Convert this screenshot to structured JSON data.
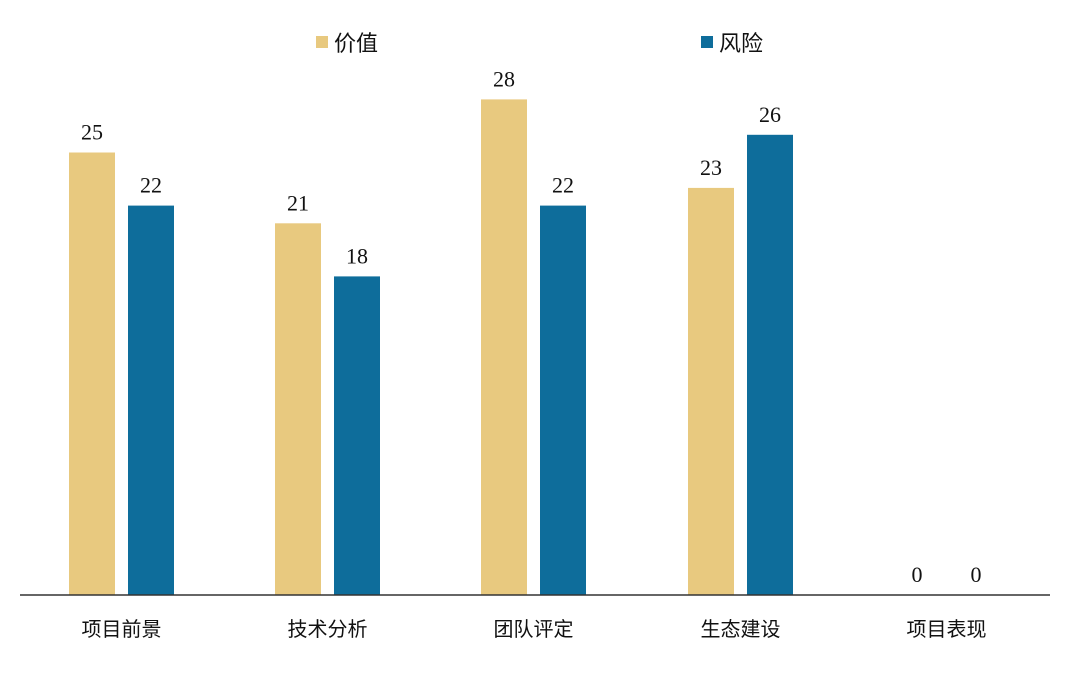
{
  "chart_data": {
    "type": "bar",
    "categories": [
      "项目前景",
      "技术分析",
      "团队评定",
      "生态建设",
      "项目表现"
    ],
    "series": [
      {
        "name": "价值",
        "values": [
          25,
          21,
          28,
          23,
          0
        ],
        "color": "#E8C97F"
      },
      {
        "name": "风险",
        "values": [
          22,
          18,
          22,
          26,
          0
        ],
        "color": "#0E6D9B"
      }
    ],
    "ylim": [
      0,
      28
    ],
    "grid": false,
    "legend": "top-center",
    "data_labels": true
  }
}
